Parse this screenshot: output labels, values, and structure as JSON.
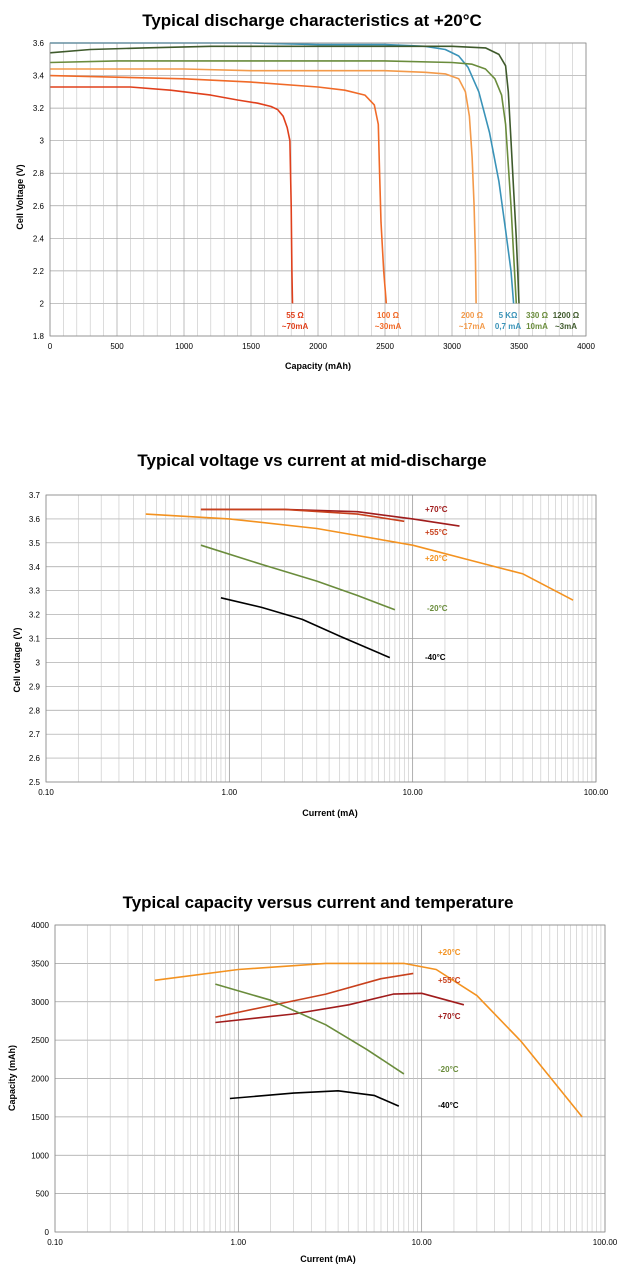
{
  "chart_data": [
    {
      "type": "line",
      "title": "Typical discharge characteristics at +20°C",
      "xlabel": "Capacity (mAh)",
      "ylabel": "Cell Voltage (V)",
      "xlim": [
        0,
        4000
      ],
      "ylim": [
        1.8,
        3.6
      ],
      "xticks": [
        0,
        500,
        1000,
        1500,
        2000,
        2500,
        3000,
        3500,
        4000
      ],
      "xtick_labels": [
        "0",
        "500",
        "1000",
        "1500",
        "2000",
        "2500",
        "3000",
        "3500",
        "4000"
      ],
      "yticks": [
        1.8,
        2,
        2.2,
        2.4,
        2.6,
        2.8,
        3,
        3.2,
        3.4,
        3.6
      ],
      "ytick_labels": [
        "1.8",
        "2",
        "2.2",
        "2.4",
        "2.6",
        "2.8",
        "3",
        "3.2",
        "3.4",
        "3.6"
      ],
      "grid": true,
      "series": [
        {
          "name": "55 Ω ~70mA",
          "label_lines": [
            "55 Ω",
            "~70mA"
          ],
          "color": "#e0401c",
          "x": [
            0,
            300,
            600,
            900,
            1200,
            1400,
            1550,
            1650,
            1700,
            1740,
            1770,
            1790,
            1800,
            1805,
            1810
          ],
          "y": [
            3.33,
            3.33,
            3.33,
            3.31,
            3.28,
            3.25,
            3.23,
            3.21,
            3.19,
            3.15,
            3.08,
            3.0,
            2.6,
            2.2,
            2.0
          ]
        },
        {
          "name": "100 Ω ~30mA",
          "label_lines": [
            "100 Ω",
            "~30mA"
          ],
          "color": "#f06a28",
          "x": [
            0,
            500,
            1000,
            1500,
            2000,
            2200,
            2350,
            2420,
            2450,
            2460,
            2470,
            2490,
            2510
          ],
          "y": [
            3.4,
            3.39,
            3.38,
            3.36,
            3.33,
            3.31,
            3.28,
            3.22,
            3.1,
            2.8,
            2.5,
            2.2,
            2.0
          ]
        },
        {
          "name": "200 Ω ~17mA",
          "label_lines": [
            "200 Ω",
            "~17mA"
          ],
          "color": "#f39a4a",
          "x": [
            0,
            500,
            1000,
            1500,
            2000,
            2500,
            2800,
            2950,
            3050,
            3100,
            3130,
            3150,
            3165,
            3175,
            3180
          ],
          "y": [
            3.44,
            3.44,
            3.44,
            3.43,
            3.43,
            3.43,
            3.42,
            3.41,
            3.38,
            3.3,
            3.15,
            2.9,
            2.6,
            2.3,
            2.0
          ]
        },
        {
          "name": "5 KΩ 0,7 mA",
          "label_lines": [
            "5 KΩ",
            "0,7 mA"
          ],
          "color": "#3a93b8",
          "x": [
            0,
            500,
            1000,
            1500,
            2000,
            2500,
            2800,
            2950,
            3050,
            3120,
            3200,
            3280,
            3350,
            3400,
            3440,
            3460
          ],
          "y": [
            3.6,
            3.6,
            3.6,
            3.6,
            3.59,
            3.59,
            3.58,
            3.56,
            3.52,
            3.45,
            3.3,
            3.05,
            2.75,
            2.45,
            2.2,
            2.0
          ]
        },
        {
          "name": "330 Ω 10mA",
          "label_lines": [
            "330 Ω",
            "10mA"
          ],
          "color": "#6a8c3c",
          "x": [
            0,
            500,
            1000,
            1500,
            2000,
            2500,
            3000,
            3150,
            3250,
            3320,
            3370,
            3400,
            3420,
            3440,
            3460,
            3480
          ],
          "y": [
            3.48,
            3.49,
            3.49,
            3.49,
            3.49,
            3.49,
            3.48,
            3.47,
            3.44,
            3.38,
            3.28,
            3.1,
            2.85,
            2.6,
            2.3,
            2.0
          ]
        },
        {
          "name": "1200 Ω ~3mA",
          "label_lines": [
            "1200 Ω",
            "~3mA"
          ],
          "color": "#3f5a2c",
          "x": [
            0,
            300,
            700,
            1200,
            1800,
            2500,
            3000,
            3250,
            3350,
            3400,
            3420,
            3440,
            3460,
            3480,
            3490,
            3500
          ],
          "y": [
            3.54,
            3.56,
            3.57,
            3.58,
            3.58,
            3.58,
            3.58,
            3.57,
            3.53,
            3.46,
            3.3,
            3.0,
            2.7,
            2.4,
            2.2,
            2.0
          ]
        }
      ]
    },
    {
      "type": "line",
      "title": "Typical voltage vs current at mid-discharge",
      "xlabel": "Current (mA)",
      "ylabel": "Cell voltage (V)",
      "xscale": "log",
      "xlim": [
        0.1,
        100
      ],
      "ylim": [
        2.5,
        3.7
      ],
      "xticks": [
        0.1,
        1,
        10,
        100
      ],
      "xtick_labels": [
        "0.10",
        "1.00",
        "10.00",
        "100.00"
      ],
      "yticks": [
        2.5,
        2.6,
        2.7,
        2.8,
        2.9,
        3.0,
        3.1,
        3.2,
        3.3,
        3.4,
        3.5,
        3.6,
        3.7
      ],
      "ytick_labels": [
        "2.5",
        "2.6",
        "2.7",
        "2.8",
        "2.9",
        "3",
        "3.1",
        "3.2",
        "3.3",
        "3.4",
        "3.5",
        "3.6",
        "3.7"
      ],
      "grid": true,
      "series": [
        {
          "name": "+70°C",
          "color": "#a01c1c",
          "x": [
            0.7,
            2,
            5,
            10,
            18
          ],
          "y": [
            3.64,
            3.64,
            3.63,
            3.6,
            3.57
          ]
        },
        {
          "name": "+55°C",
          "color": "#c8401c",
          "x": [
            0.7,
            2,
            5,
            9
          ],
          "y": [
            3.64,
            3.64,
            3.62,
            3.59
          ]
        },
        {
          "name": "+20°C",
          "color": "#f39220",
          "x": [
            0.35,
            1,
            3,
            10,
            20,
            40,
            75
          ],
          "y": [
            3.62,
            3.6,
            3.56,
            3.49,
            3.43,
            3.37,
            3.26
          ]
        },
        {
          "name": "-20°C",
          "color": "#6a8c3c",
          "x": [
            0.7,
            1.5,
            3,
            5,
            8
          ],
          "y": [
            3.49,
            3.41,
            3.34,
            3.28,
            3.22
          ]
        },
        {
          "name": "-40°C",
          "color": "#000000",
          "x": [
            0.9,
            1.5,
            2.5,
            4,
            7.5
          ],
          "y": [
            3.27,
            3.23,
            3.18,
            3.11,
            3.02
          ]
        }
      ]
    },
    {
      "type": "line",
      "title": "Typical capacity versus current and temperature",
      "xlabel": "Current (mA)",
      "ylabel": "Capacity (mAh)",
      "xscale": "log",
      "xlim": [
        0.1,
        100
      ],
      "ylim": [
        0,
        4000
      ],
      "xticks": [
        0.1,
        1,
        10,
        100
      ],
      "xtick_labels": [
        "0.10",
        "1.00",
        "10.00",
        "100.00"
      ],
      "yticks": [
        0,
        500,
        1000,
        1500,
        2000,
        2500,
        3000,
        3500,
        4000
      ],
      "ytick_labels": [
        "0",
        "500",
        "1000",
        "1500",
        "2000",
        "2500",
        "3000",
        "3500",
        "4000"
      ],
      "grid": true,
      "series": [
        {
          "name": "+20°C",
          "color": "#f39220",
          "x": [
            0.35,
            1,
            3,
            8,
            12,
            20,
            35,
            55,
            75
          ],
          "y": [
            3280,
            3420,
            3500,
            3500,
            3420,
            3080,
            2480,
            1900,
            1500
          ]
        },
        {
          "name": "+55°C",
          "color": "#c8401c",
          "x": [
            0.75,
            1.5,
            3,
            6,
            9
          ],
          "y": [
            2800,
            2950,
            3100,
            3300,
            3370
          ]
        },
        {
          "name": "+70°C",
          "color": "#a01c1c",
          "x": [
            0.75,
            2,
            4,
            7,
            10,
            17
          ],
          "y": [
            2730,
            2840,
            2960,
            3100,
            3110,
            2960
          ]
        },
        {
          "name": "-20°C",
          "color": "#6a8c3c",
          "x": [
            0.75,
            1.5,
            3,
            5,
            8
          ],
          "y": [
            3230,
            3020,
            2700,
            2380,
            2060
          ]
        },
        {
          "name": "-40°C",
          "color": "#000000",
          "x": [
            0.9,
            2,
            3.5,
            5.5,
            7.5
          ],
          "y": [
            1740,
            1810,
            1840,
            1780,
            1640
          ]
        }
      ]
    }
  ]
}
